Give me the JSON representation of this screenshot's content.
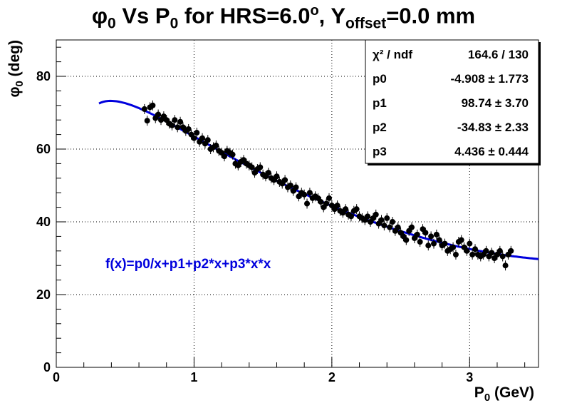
{
  "title": {
    "phi": "φ",
    "sub0": "0",
    "vs": " Vs P",
    "sub1": "0",
    "mid": " for HRS=6.0",
    "deg": "o",
    "comma": ", Y",
    "sub2": "offset",
    "end": "=0.0 mm"
  },
  "colors": {
    "fit": "#0000dd",
    "points": "#000000",
    "formula": "#0000dd"
  },
  "chart_data": {
    "type": "scatter",
    "xlabel": "P",
    "xlabel_sub": "0",
    "xlabel_unit": " (GeV)",
    "ylabel": "φ",
    "ylabel_sub": "0",
    "ylabel_unit": " (deg)",
    "xlim": [
      0,
      3.5
    ],
    "ylim": [
      0,
      90
    ],
    "x_ticks": [
      0,
      1,
      2,
      3
    ],
    "y_ticks": [
      0,
      20,
      40,
      60,
      80
    ],
    "grid": true,
    "legend": "top-right",
    "fit": {
      "formula": "f(x)=p0/x+p1+p2*x+p3*x*x",
      "p0": -4.908,
      "p1": 98.74,
      "p2": -34.83,
      "p3": 4.436,
      "x_range": [
        0.31,
        3.5
      ]
    },
    "stats": [
      {
        "label": "χ² / ndf",
        "value": "164.6 / 130"
      },
      {
        "label": "p0",
        "value": "-4.908 ± 1.773"
      },
      {
        "label": "p1",
        "value": "98.74 ± 3.70"
      },
      {
        "label": "p2",
        "value": "-34.83 ± 2.33"
      },
      {
        "label": "p3",
        "value": "4.436 ± 0.444"
      }
    ],
    "points": [
      [
        0.64,
        71.0
      ],
      [
        0.66,
        67.8
      ],
      [
        0.68,
        71.5
      ],
      [
        0.7,
        72.0
      ],
      [
        0.72,
        68.5
      ],
      [
        0.74,
        69.5
      ],
      [
        0.76,
        68.0
      ],
      [
        0.78,
        69.0
      ],
      [
        0.8,
        68.0
      ],
      [
        0.82,
        67.0
      ],
      [
        0.84,
        66.5
      ],
      [
        0.86,
        68.0
      ],
      [
        0.88,
        66.0
      ],
      [
        0.9,
        67.5
      ],
      [
        0.92,
        66.0
      ],
      [
        0.94,
        65.0
      ],
      [
        0.96,
        65.5
      ],
      [
        0.98,
        64.0
      ],
      [
        1.0,
        63.0
      ],
      [
        1.02,
        64.5
      ],
      [
        1.04,
        62.0
      ],
      [
        1.06,
        63.0
      ],
      [
        1.08,
        61.5
      ],
      [
        1.1,
        62.5
      ],
      [
        1.12,
        60.0
      ],
      [
        1.14,
        60.5
      ],
      [
        1.16,
        61.0
      ],
      [
        1.18,
        59.5
      ],
      [
        1.2,
        59.0
      ],
      [
        1.22,
        58.0
      ],
      [
        1.24,
        59.5
      ],
      [
        1.26,
        59.0
      ],
      [
        1.28,
        58.5
      ],
      [
        1.3,
        56.0
      ],
      [
        1.32,
        55.5
      ],
      [
        1.34,
        56.5
      ],
      [
        1.36,
        57.0
      ],
      [
        1.38,
        56.0
      ],
      [
        1.4,
        55.5
      ],
      [
        1.42,
        55.0
      ],
      [
        1.44,
        53.5
      ],
      [
        1.46,
        54.5
      ],
      [
        1.48,
        55.0
      ],
      [
        1.5,
        53.0
      ],
      [
        1.52,
        52.5
      ],
      [
        1.54,
        53.5
      ],
      [
        1.56,
        52.0
      ],
      [
        1.58,
        51.5
      ],
      [
        1.6,
        52.5
      ],
      [
        1.62,
        51.0
      ],
      [
        1.64,
        50.5
      ],
      [
        1.66,
        51.5
      ],
      [
        1.68,
        49.5
      ],
      [
        1.7,
        50.0
      ],
      [
        1.72,
        48.5
      ],
      [
        1.74,
        49.5
      ],
      [
        1.76,
        47.0
      ],
      [
        1.78,
        48.0
      ],
      [
        1.8,
        47.5
      ],
      [
        1.82,
        45.0
      ],
      [
        1.84,
        48.0
      ],
      [
        1.86,
        46.5
      ],
      [
        1.88,
        47.0
      ],
      [
        1.9,
        46.5
      ],
      [
        1.92,
        45.5
      ],
      [
        1.94,
        44.0
      ],
      [
        1.96,
        45.0
      ],
      [
        1.98,
        46.5
      ],
      [
        2.0,
        44.5
      ],
      [
        2.02,
        43.5
      ],
      [
        2.04,
        44.5
      ],
      [
        2.06,
        43.0
      ],
      [
        2.08,
        42.5
      ],
      [
        2.1,
        43.5
      ],
      [
        2.12,
        42.0
      ],
      [
        2.14,
        41.5
      ],
      [
        2.16,
        43.0
      ],
      [
        2.18,
        43.5
      ],
      [
        2.2,
        41.5
      ],
      [
        2.22,
        41.0
      ],
      [
        2.24,
        40.5
      ],
      [
        2.26,
        41.5
      ],
      [
        2.28,
        40.0
      ],
      [
        2.3,
        41.0
      ],
      [
        2.32,
        42.0
      ],
      [
        2.34,
        39.5
      ],
      [
        2.36,
        40.5
      ],
      [
        2.38,
        39.0
      ],
      [
        2.4,
        41.0
      ],
      [
        2.42,
        38.5
      ],
      [
        2.44,
        40.0
      ],
      [
        2.46,
        37.5
      ],
      [
        2.48,
        38.5
      ],
      [
        2.5,
        37.0
      ],
      [
        2.52,
        36.0
      ],
      [
        2.54,
        35.0
      ],
      [
        2.56,
        37.5
      ],
      [
        2.58,
        38.5
      ],
      [
        2.6,
        35.5
      ],
      [
        2.62,
        36.5
      ],
      [
        2.64,
        34.5
      ],
      [
        2.66,
        38.0
      ],
      [
        2.68,
        37.0
      ],
      [
        2.7,
        33.5
      ],
      [
        2.72,
        36.0
      ],
      [
        2.74,
        34.0
      ],
      [
        2.76,
        36.5
      ],
      [
        2.78,
        35.0
      ],
      [
        2.8,
        33.5
      ],
      [
        2.82,
        34.0
      ],
      [
        2.84,
        32.0
      ],
      [
        2.86,
        32.5
      ],
      [
        2.88,
        33.0
      ],
      [
        2.9,
        31.0
      ],
      [
        2.92,
        34.5
      ],
      [
        2.94,
        35.0
      ],
      [
        2.96,
        33.0
      ],
      [
        2.98,
        32.0
      ],
      [
        3.0,
        34.0
      ],
      [
        3.02,
        31.0
      ],
      [
        3.04,
        32.5
      ],
      [
        3.06,
        31.0
      ],
      [
        3.08,
        30.5
      ],
      [
        3.1,
        31.0
      ],
      [
        3.12,
        32.0
      ],
      [
        3.14,
        30.5
      ],
      [
        3.16,
        31.5
      ],
      [
        3.18,
        30.0
      ],
      [
        3.2,
        31.0
      ],
      [
        3.22,
        32.0
      ],
      [
        3.24,
        30.5
      ],
      [
        3.26,
        28.0
      ],
      [
        3.28,
        31.0
      ],
      [
        3.3,
        32.0
      ]
    ]
  }
}
